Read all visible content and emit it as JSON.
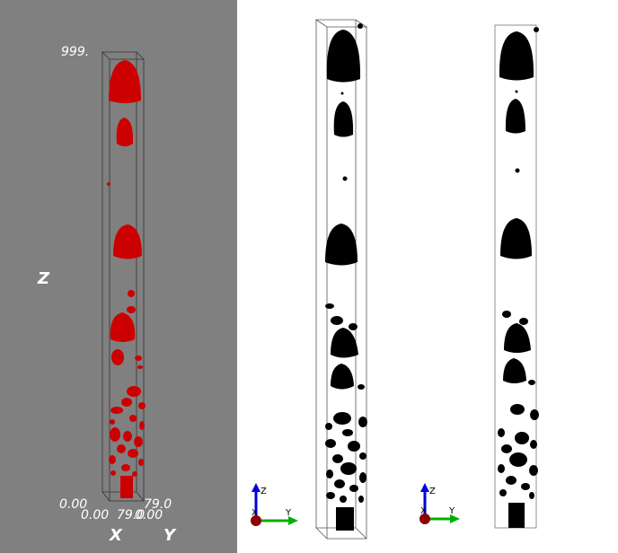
{
  "viewports": {
    "left": {
      "background": "#808080",
      "blob_color": "#cc0000",
      "z_max_label": "999.",
      "z_axis_label": "Z",
      "x_axis_label": "X",
      "y_axis_label": "Y",
      "origin_z_label": "0.00",
      "origin_x_label": "0.00",
      "x_max_label": "79.0",
      "y_min_label": "0.00",
      "y_max_label": "79.0"
    },
    "middle": {
      "background": "#ffffff",
      "blob_color": "#000000",
      "triad": {
        "x": "X",
        "y": "Y",
        "z": "Z"
      }
    },
    "right": {
      "background": "#ffffff",
      "blob_color": "#000000",
      "triad": {
        "x": "X",
        "y": "Y",
        "z": "Z"
      }
    }
  },
  "triad_colors": {
    "x": "#8b0000",
    "y": "#00b000",
    "z": "#0000dd"
  }
}
